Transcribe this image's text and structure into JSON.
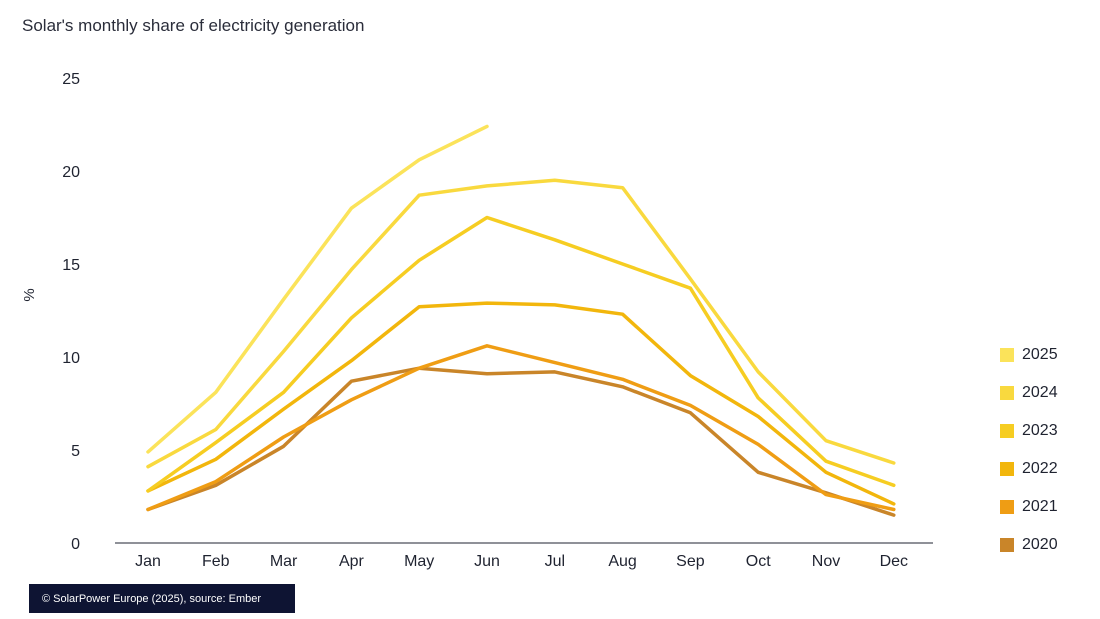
{
  "chart_data": {
    "type": "line",
    "title": "Solar's monthly share of electricity generation",
    "ylabel": "%",
    "xlabel": "",
    "ylim": [
      0,
      25
    ],
    "yticks": [
      0,
      5,
      10,
      15,
      20,
      25
    ],
    "grid": false,
    "legend_position": "right",
    "categories": [
      "Jan",
      "Feb",
      "Mar",
      "Apr",
      "May",
      "Jun",
      "Jul",
      "Aug",
      "Sep",
      "Oct",
      "Nov",
      "Dec"
    ],
    "series": [
      {
        "name": "2025",
        "color": "#fbe35a",
        "values": [
          4.9,
          8.1,
          13.1,
          18.0,
          20.6,
          22.4,
          null,
          null,
          null,
          null,
          null,
          null
        ]
      },
      {
        "name": "2024",
        "color": "#f9d93e",
        "values": [
          4.1,
          6.1,
          10.3,
          14.7,
          18.7,
          19.2,
          19.5,
          19.1,
          14.2,
          9.2,
          5.5,
          4.3
        ]
      },
      {
        "name": "2023",
        "color": "#f6cd22",
        "values": [
          2.8,
          5.4,
          8.1,
          12.1,
          15.2,
          17.5,
          16.3,
          15.0,
          13.7,
          7.8,
          4.4,
          3.1
        ]
      },
      {
        "name": "2022",
        "color": "#f2b60c",
        "values": [
          2.8,
          4.5,
          7.2,
          9.8,
          12.7,
          12.9,
          12.8,
          12.3,
          9.0,
          6.8,
          3.8,
          2.1
        ]
      },
      {
        "name": "2021",
        "color": "#ef9d14",
        "values": [
          1.8,
          3.3,
          5.7,
          7.7,
          9.4,
          10.6,
          9.7,
          8.8,
          7.4,
          5.3,
          2.6,
          1.8
        ]
      },
      {
        "name": "2020",
        "color": "#c98529",
        "values": [
          1.8,
          3.1,
          5.2,
          8.7,
          9.4,
          9.1,
          9.2,
          8.4,
          7.0,
          3.8,
          2.7,
          1.5
        ]
      }
    ]
  },
  "credit": "© SolarPower Europe (2025), source: Ember"
}
